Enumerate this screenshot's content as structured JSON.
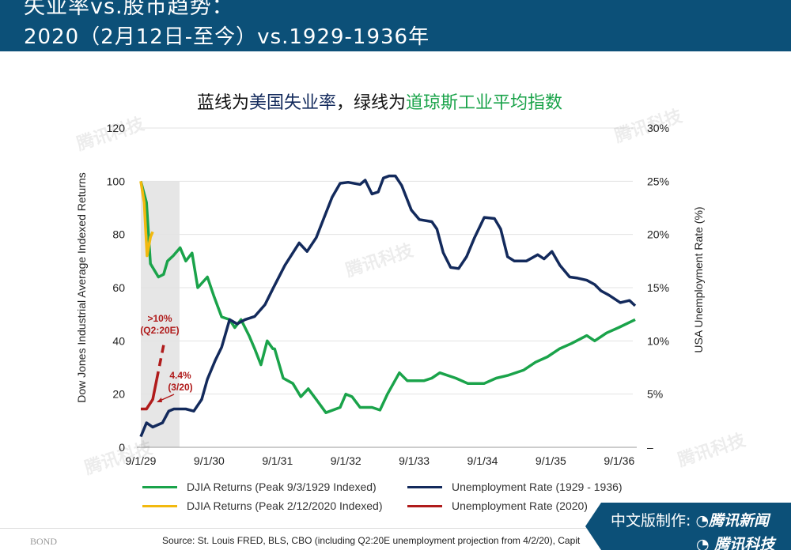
{
  "header": {
    "title_line1": "失业率vs.股市趋势：",
    "title_line2": "2020（2月12日-至今）vs.1929-1936年"
  },
  "subtitle": {
    "part1": "蓝线为",
    "part2": "美国失业率",
    "part3": "，绿线为",
    "part4": "道琼斯工业平均指数"
  },
  "chart_data": {
    "type": "line",
    "ylabel": "Dow Jones Industrial Average Indexed Returns",
    "y2label": "USA Unemployment Rate (%)",
    "x_unit": "months since 9/1/1929",
    "xlim": [
      0,
      88
    ],
    "ylim": [
      0,
      120
    ],
    "y2lim": [
      0,
      30
    ],
    "x_ticks": [
      {
        "label": "9/1/29",
        "value": 0
      },
      {
        "label": "9/1/30",
        "value": 12
      },
      {
        "label": "9/1/31",
        "value": 24
      },
      {
        "label": "9/1/32",
        "value": 36
      },
      {
        "label": "9/1/33",
        "value": 48
      },
      {
        "label": "9/1/34",
        "value": 60
      },
      {
        "label": "9/1/35",
        "value": 72
      },
      {
        "label": "9/1/36",
        "value": 84
      }
    ],
    "y_ticks": [
      "0",
      "20",
      "40",
      "60",
      "80",
      "100",
      "120"
    ],
    "y2_ticks": [
      "–",
      "5%",
      "10%",
      "15%",
      "20%",
      "25%",
      "30%"
    ],
    "shaded_region_months": [
      0,
      6.8
    ],
    "series": [
      {
        "name": "DJIA Returns (Peak 9/3/1929 Indexed)",
        "axis": "left",
        "color": "#1aa34a",
        "dash": false,
        "x": [
          0,
          1,
          1.7,
          3.1,
          4,
          4.7,
          5.7,
          6.9,
          7.9,
          9,
          10,
          11.7,
          12.8,
          14.2,
          15.6,
          16.5,
          17.6,
          19,
          20,
          21.1,
          22.2,
          23.2,
          23.5,
          25,
          26.7,
          28.1,
          29.4,
          30.8,
          32.5,
          35,
          36,
          37.1,
          38.5,
          40.6,
          42,
          43.3,
          45.4,
          46.8,
          49.7,
          51.1,
          52.5,
          55.3,
          57.4,
          60.3,
          62.4,
          64.4,
          67.2,
          69.3,
          71.4,
          73.5,
          75.6,
          78.3,
          79.7,
          81.8,
          83.9,
          86.8
        ],
        "values": [
          100,
          92,
          69,
          64,
          65,
          70,
          72,
          75,
          70,
          73,
          60,
          64,
          57,
          49,
          48,
          45,
          48,
          42,
          37,
          31,
          40,
          37,
          37,
          26,
          24,
          19,
          22,
          18,
          13,
          15,
          20,
          19,
          15,
          15,
          14,
          20,
          28,
          25,
          25,
          26,
          28,
          26,
          24,
          24,
          26,
          27,
          29,
          32,
          34,
          37,
          39,
          42,
          40,
          43,
          45,
          48
        ]
      },
      {
        "name": "Unemployment Rate (1929 - 1936)",
        "axis": "right",
        "color": "#132a5c",
        "dash": false,
        "x": [
          0,
          1,
          2.1,
          3.8,
          4.9,
          5.8,
          7.9,
          9.3,
          10.7,
          11.7,
          13.1,
          14.2,
          15.6,
          16.9,
          18.3,
          20,
          21.8,
          23.2,
          25.3,
          27.8,
          29.2,
          30.8,
          32.2,
          33.6,
          35,
          36.4,
          38.5,
          39.4,
          40.6,
          41.7,
          42.6,
          43.6,
          44.7,
          45.8,
          47.5,
          48.9,
          51.1,
          52,
          53.1,
          54.4,
          55.8,
          57.2,
          58.6,
          60.3,
          62.1,
          63.2,
          64.4,
          65.6,
          67.7,
          69.7,
          70.8,
          72.2,
          73.6,
          75.3,
          76.7,
          78.3,
          79.7,
          80.8,
          82.2,
          84.2,
          85.8,
          86.8
        ],
        "values": [
          1,
          2.3,
          1.9,
          2.3,
          3.4,
          3.6,
          3.6,
          3.4,
          4.5,
          6.4,
          8.2,
          9.4,
          12,
          11.6,
          12,
          12.3,
          13.4,
          14.9,
          17.1,
          19.2,
          18.4,
          19.7,
          21.6,
          23.5,
          24.8,
          24.9,
          24.7,
          25.1,
          23.8,
          24,
          25.3,
          25.5,
          25.5,
          24.6,
          22.3,
          21.4,
          21.2,
          20.5,
          18.3,
          16.9,
          16.8,
          17.9,
          19.7,
          21.6,
          21.5,
          20.5,
          17.9,
          17.5,
          17.5,
          18.1,
          17.7,
          18.4,
          17.1,
          16,
          15.9,
          15.7,
          15.3,
          14.7,
          14.3,
          13.6,
          13.8,
          13.3
        ]
      },
      {
        "name": "DJIA Returns (Peak 2/12/2020 Indexed)",
        "axis": "left",
        "color": "#f2b90f",
        "dash": false,
        "x": [
          0,
          0.6,
          1.1,
          1.7,
          2.1
        ],
        "values": [
          100,
          92,
          72,
          79,
          81
        ]
      },
      {
        "name": "Unemployment Rate (2020)",
        "axis": "right",
        "color": "#b01b1b",
        "dash": false,
        "x": [
          0,
          1,
          2.1,
          2.8
        ],
        "values": [
          3.6,
          3.6,
          4.5,
          6.4
        ]
      },
      {
        "name": "Unemployment Rate (2020) projection",
        "axis": "right",
        "color": "#b01b1b",
        "dash": true,
        "legend": false,
        "x": [
          2.8,
          4.2
        ],
        "values": [
          6.4,
          10.1
        ]
      }
    ],
    "annotations": [
      {
        "text1": ">10%",
        "text2": "(Q2:20E)"
      },
      {
        "text1": "4.4%",
        "text2": "(3/20)"
      }
    ],
    "legend_placement": "bottom"
  },
  "legend": [
    {
      "label": "DJIA Returns (Peak 9/3/1929 Indexed)",
      "color": "#1aa34a"
    },
    {
      "label": "Unemployment Rate (1929 - 1936)",
      "color": "#132a5c"
    },
    {
      "label": "DJIA Returns (Peak 2/12/2020 Indexed)",
      "color": "#f2b90f"
    },
    {
      "label": "Unemployment Rate (2020)",
      "color": "#b01b1b"
    }
  ],
  "watermark": "腾讯科技",
  "footer": {
    "logo": "BOND",
    "source": "Source: St. Louis FRED, BLS, CBO (including Q2:20E unemployment projection from 4/2/20), Capit"
  },
  "badge": {
    "line1_prefix": "中文版制作:",
    "line1_brand": "腾讯新闻",
    "line2_brand": "腾讯科技"
  }
}
